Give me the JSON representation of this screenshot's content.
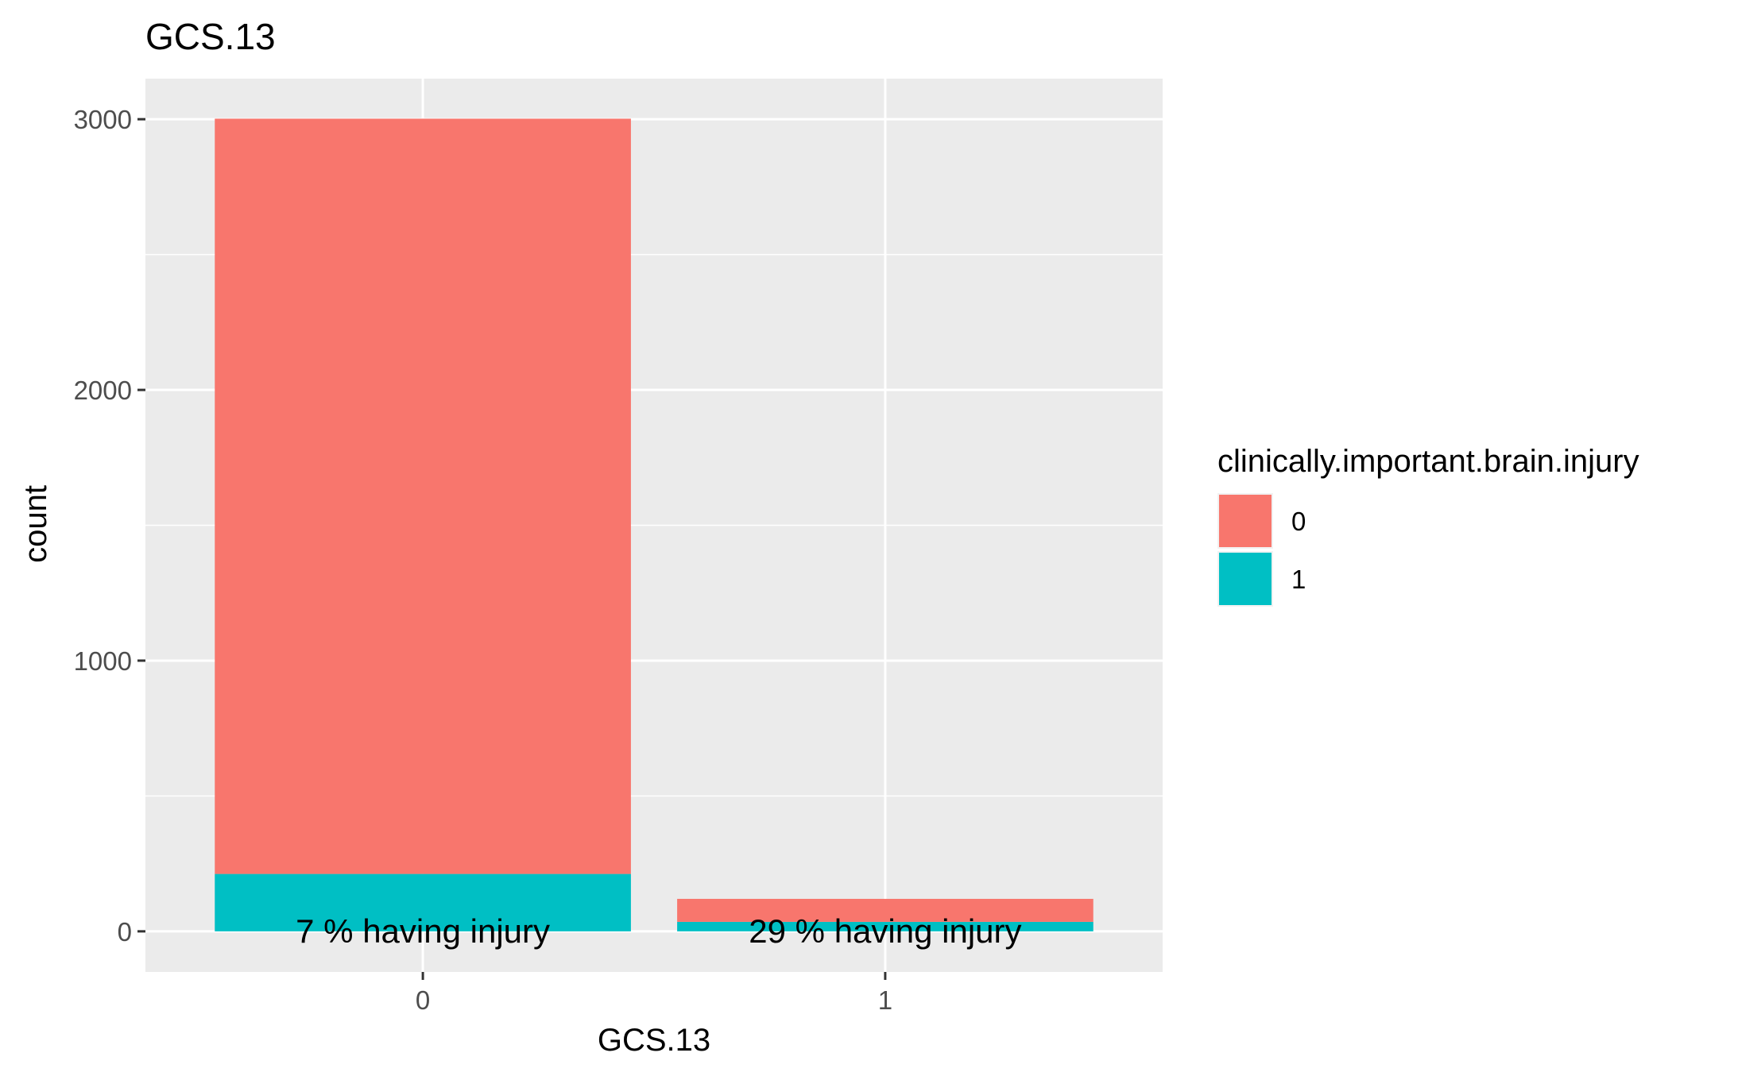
{
  "chart_data": {
    "type": "bar",
    "stacked": true,
    "title": "GCS.13",
    "xlabel": "GCS.13",
    "ylabel": "count",
    "categories": [
      "0",
      "1"
    ],
    "series": [
      {
        "name": "0",
        "values": [
          2790,
          85
        ],
        "color": "#F8766D"
      },
      {
        "name": "1",
        "values": [
          212,
          35
        ],
        "color": "#00BFC4"
      }
    ],
    "bar_labels": [
      "7 % having injury",
      "29 % having injury"
    ],
    "ylim": [
      -150,
      3150
    ],
    "yticks": [
      0,
      1000,
      2000,
      3000
    ],
    "ytick_labels": [
      "0",
      "1000",
      "2000",
      "3000"
    ],
    "grid": true,
    "legend": {
      "title": "clinically.important.brain.injury",
      "position": "right",
      "items": [
        "0",
        "1"
      ]
    },
    "panel_background": "#EBEBEB",
    "grid_color": "#FFFFFF",
    "tick_color": "#333333"
  }
}
